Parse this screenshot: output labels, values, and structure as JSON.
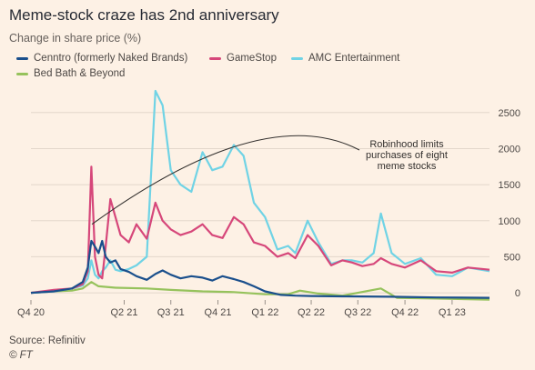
{
  "title": "Meme-stock craze has 2nd anniversary",
  "subtitle": "Change in share price (%)",
  "source": "Source: Refinitiv",
  "credit": "© FT",
  "chart_data": {
    "type": "line",
    "title": "Meme-stock craze has 2nd anniversary",
    "ylabel": "Change in share price (%)",
    "ylim": [
      -100,
      2800
    ],
    "yticks": [
      0,
      500,
      1000,
      1500,
      2000,
      2500
    ],
    "x_range": [
      "2020-10-01",
      "2023-03-15"
    ],
    "xticks": [
      {
        "label": "Q4 20",
        "date": "2020-10-01"
      },
      {
        "label": "Q2 21",
        "date": "2021-04-01"
      },
      {
        "label": "Q3 21",
        "date": "2021-07-01"
      },
      {
        "label": "Q4 21",
        "date": "2021-10-01"
      },
      {
        "label": "Q1 22",
        "date": "2022-01-01"
      },
      {
        "label": "Q2 22",
        "date": "2022-04-01"
      },
      {
        "label": "Q3 22",
        "date": "2022-07-01"
      },
      {
        "label": "Q4 22",
        "date": "2022-10-01"
      },
      {
        "label": "Q1 23",
        "date": "2023-01-01"
      }
    ],
    "grid": true,
    "legend_position": "top",
    "annotation": {
      "text": [
        "Robinhood limits",
        "purchases of eight",
        "meme stocks"
      ],
      "points_to": {
        "date": "2021-01-28",
        "value": 950
      }
    },
    "series": [
      {
        "name": "Cenntro (formerly Naked Brands)",
        "color": "#1a4f8c",
        "points": [
          [
            "2020-10-01",
            0
          ],
          [
            "2020-11-15",
            20
          ],
          [
            "2020-12-20",
            60
          ],
          [
            "2021-01-10",
            150
          ],
          [
            "2021-01-20",
            350
          ],
          [
            "2021-01-27",
            720
          ],
          [
            "2021-02-03",
            640
          ],
          [
            "2021-02-10",
            550
          ],
          [
            "2021-02-17",
            720
          ],
          [
            "2021-02-24",
            500
          ],
          [
            "2021-03-05",
            420
          ],
          [
            "2021-03-15",
            450
          ],
          [
            "2021-03-25",
            330
          ],
          [
            "2021-04-10",
            290
          ],
          [
            "2021-04-25",
            230
          ],
          [
            "2021-05-15",
            180
          ],
          [
            "2021-06-01",
            260
          ],
          [
            "2021-06-15",
            310
          ],
          [
            "2021-07-01",
            250
          ],
          [
            "2021-07-20",
            200
          ],
          [
            "2021-08-10",
            230
          ],
          [
            "2021-09-01",
            210
          ],
          [
            "2021-09-20",
            170
          ],
          [
            "2021-10-10",
            230
          ],
          [
            "2021-11-01",
            190
          ],
          [
            "2021-11-20",
            150
          ],
          [
            "2021-12-10",
            90
          ],
          [
            "2022-01-01",
            20
          ],
          [
            "2022-02-01",
            -30
          ],
          [
            "2022-03-01",
            -40
          ],
          [
            "2022-04-01",
            -45
          ],
          [
            "2022-06-01",
            -50
          ],
          [
            "2022-09-01",
            -55
          ],
          [
            "2022-12-01",
            -65
          ],
          [
            "2023-03-15",
            -70
          ]
        ]
      },
      {
        "name": "GameStop",
        "color": "#d6477a",
        "points": [
          [
            "2020-10-01",
            0
          ],
          [
            "2020-11-15",
            40
          ],
          [
            "2020-12-20",
            60
          ],
          [
            "2021-01-10",
            120
          ],
          [
            "2021-01-20",
            300
          ],
          [
            "2021-01-27",
            1750
          ],
          [
            "2021-02-03",
            500
          ],
          [
            "2021-02-10",
            250
          ],
          [
            "2021-02-17",
            200
          ],
          [
            "2021-02-24",
            650
          ],
          [
            "2021-03-05",
            1300
          ],
          [
            "2021-03-15",
            1050
          ],
          [
            "2021-03-25",
            800
          ],
          [
            "2021-04-10",
            700
          ],
          [
            "2021-04-25",
            950
          ],
          [
            "2021-05-15",
            750
          ],
          [
            "2021-06-01",
            1250
          ],
          [
            "2021-06-15",
            1000
          ],
          [
            "2021-07-01",
            880
          ],
          [
            "2021-07-20",
            800
          ],
          [
            "2021-08-10",
            850
          ],
          [
            "2021-09-01",
            950
          ],
          [
            "2021-09-20",
            800
          ],
          [
            "2021-10-10",
            760
          ],
          [
            "2021-11-01",
            1050
          ],
          [
            "2021-11-20",
            950
          ],
          [
            "2021-12-10",
            700
          ],
          [
            "2022-01-01",
            650
          ],
          [
            "2022-01-25",
            500
          ],
          [
            "2022-02-15",
            550
          ],
          [
            "2022-03-01",
            480
          ],
          [
            "2022-03-25",
            800
          ],
          [
            "2022-04-15",
            650
          ],
          [
            "2022-05-10",
            380
          ],
          [
            "2022-06-01",
            450
          ],
          [
            "2022-06-20",
            420
          ],
          [
            "2022-07-10",
            370
          ],
          [
            "2022-08-01",
            400
          ],
          [
            "2022-08-15",
            480
          ],
          [
            "2022-09-05",
            400
          ],
          [
            "2022-10-01",
            350
          ],
          [
            "2022-11-01",
            450
          ],
          [
            "2022-12-01",
            300
          ],
          [
            "2023-01-01",
            280
          ],
          [
            "2023-02-01",
            350
          ],
          [
            "2023-03-15",
            320
          ]
        ]
      },
      {
        "name": "AMC Entertainment",
        "color": "#70d3e5",
        "points": [
          [
            "2020-10-01",
            0
          ],
          [
            "2020-11-15",
            20
          ],
          [
            "2020-12-20",
            60
          ],
          [
            "2021-01-10",
            100
          ],
          [
            "2021-01-20",
            200
          ],
          [
            "2021-01-27",
            450
          ],
          [
            "2021-02-03",
            250
          ],
          [
            "2021-02-10",
            200
          ],
          [
            "2021-02-17",
            300
          ],
          [
            "2021-02-24",
            350
          ],
          [
            "2021-03-05",
            450
          ],
          [
            "2021-03-15",
            320
          ],
          [
            "2021-03-25",
            300
          ],
          [
            "2021-04-10",
            330
          ],
          [
            "2021-04-25",
            380
          ],
          [
            "2021-05-15",
            500
          ],
          [
            "2021-06-01",
            2800
          ],
          [
            "2021-06-15",
            2600
          ],
          [
            "2021-07-01",
            1700
          ],
          [
            "2021-07-20",
            1500
          ],
          [
            "2021-08-10",
            1400
          ],
          [
            "2021-09-01",
            1950
          ],
          [
            "2021-09-20",
            1700
          ],
          [
            "2021-10-10",
            1750
          ],
          [
            "2021-11-01",
            2050
          ],
          [
            "2021-11-20",
            1900
          ],
          [
            "2021-12-10",
            1250
          ],
          [
            "2022-01-01",
            1050
          ],
          [
            "2022-01-25",
            600
          ],
          [
            "2022-02-15",
            650
          ],
          [
            "2022-03-01",
            550
          ],
          [
            "2022-03-25",
            1000
          ],
          [
            "2022-04-15",
            700
          ],
          [
            "2022-05-10",
            400
          ],
          [
            "2022-06-01",
            450
          ],
          [
            "2022-06-20",
            450
          ],
          [
            "2022-07-10",
            420
          ],
          [
            "2022-08-01",
            550
          ],
          [
            "2022-08-15",
            1100
          ],
          [
            "2022-09-05",
            550
          ],
          [
            "2022-10-01",
            400
          ],
          [
            "2022-11-01",
            480
          ],
          [
            "2022-12-01",
            250
          ],
          [
            "2023-01-01",
            230
          ],
          [
            "2023-02-01",
            350
          ],
          [
            "2023-03-15",
            300
          ]
        ]
      },
      {
        "name": "Bed Bath & Beyond",
        "color": "#96c25c",
        "points": [
          [
            "2020-10-01",
            0
          ],
          [
            "2020-11-15",
            20
          ],
          [
            "2020-12-20",
            30
          ],
          [
            "2021-01-10",
            60
          ],
          [
            "2021-01-27",
            150
          ],
          [
            "2021-02-10",
            90
          ],
          [
            "2021-03-15",
            70
          ],
          [
            "2021-05-15",
            60
          ],
          [
            "2021-07-01",
            40
          ],
          [
            "2021-09-01",
            20
          ],
          [
            "2021-11-01",
            10
          ],
          [
            "2022-01-01",
            -20
          ],
          [
            "2022-02-15",
            -20
          ],
          [
            "2022-03-10",
            30
          ],
          [
            "2022-04-15",
            -10
          ],
          [
            "2022-06-01",
            -40
          ],
          [
            "2022-08-15",
            60
          ],
          [
            "2022-09-15",
            -70
          ],
          [
            "2022-12-01",
            -80
          ],
          [
            "2023-03-15",
            -95
          ]
        ]
      }
    ]
  }
}
